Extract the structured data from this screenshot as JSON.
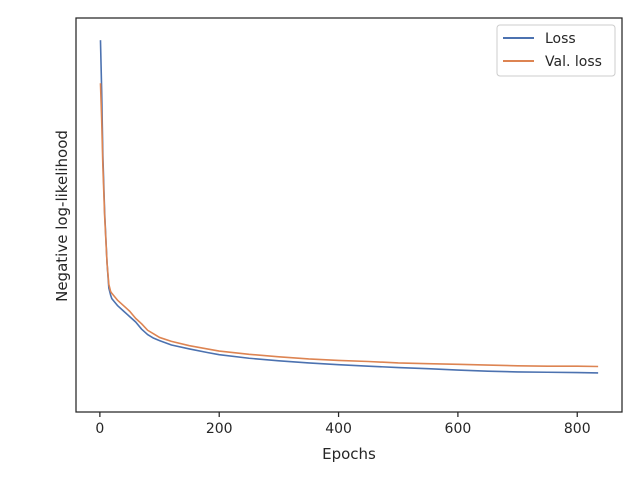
{
  "chart_data": {
    "type": "line",
    "title": "",
    "xlabel": "Epochs",
    "ylabel": "Negative log-likelihood",
    "xlim": [
      -40,
      875
    ],
    "ylim": [
      0,
      1
    ],
    "x_ticks": [
      "0",
      "200",
      "400",
      "600",
      "800"
    ],
    "x_tick_values": [
      0,
      200,
      400,
      600,
      800
    ],
    "y_tick_labels_shown": false,
    "grid": false,
    "legend_position": "top-right",
    "series": [
      {
        "name": "Loss",
        "color": "#4c72b0",
        "x": [
          1,
          3,
          5,
          8,
          12,
          15,
          18,
          20,
          25,
          30,
          40,
          50,
          60,
          70,
          80,
          90,
          100,
          120,
          150,
          180,
          200,
          250,
          300,
          350,
          400,
          450,
          500,
          550,
          600,
          650,
          700,
          750,
          800,
          835
        ],
        "y": [
          0.98,
          0.84,
          0.66,
          0.5,
          0.36,
          0.29,
          0.27,
          0.26,
          0.25,
          0.24,
          0.225,
          0.21,
          0.195,
          0.175,
          0.16,
          0.15,
          0.143,
          0.131,
          0.12,
          0.11,
          0.104,
          0.094,
          0.087,
          0.081,
          0.076,
          0.072,
          0.068,
          0.065,
          0.061,
          0.058,
          0.056,
          0.055,
          0.054,
          0.053
        ]
      },
      {
        "name": "Val. loss",
        "color": "#dd8452",
        "x": [
          1,
          3,
          5,
          8,
          12,
          15,
          18,
          20,
          25,
          30,
          40,
          50,
          60,
          70,
          80,
          90,
          100,
          120,
          150,
          180,
          200,
          250,
          300,
          350,
          400,
          450,
          500,
          550,
          600,
          650,
          700,
          750,
          800,
          835
        ],
        "y": [
          0.86,
          0.76,
          0.63,
          0.49,
          0.36,
          0.3,
          0.28,
          0.275,
          0.265,
          0.255,
          0.24,
          0.225,
          0.205,
          0.19,
          0.172,
          0.162,
          0.152,
          0.141,
          0.129,
          0.12,
          0.114,
          0.105,
          0.098,
          0.092,
          0.088,
          0.085,
          0.081,
          0.079,
          0.077,
          0.075,
          0.073,
          0.072,
          0.072,
          0.071
        ]
      }
    ]
  }
}
